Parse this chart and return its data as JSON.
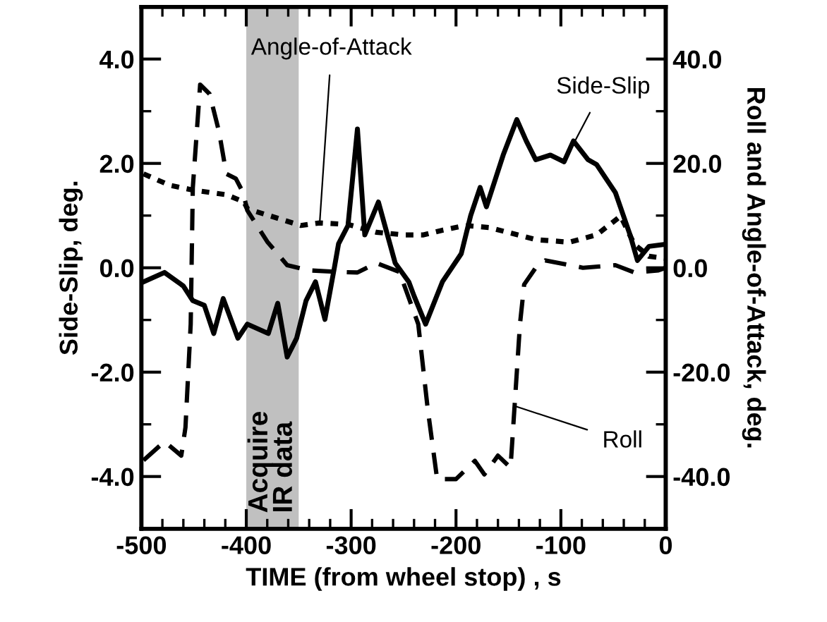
{
  "chart_data": {
    "type": "line",
    "xlabel": "TIME (from wheel stop) , s",
    "ylabel": "Side-Slip, deg.",
    "y2label": "Roll and Angle-of-Attack, deg.",
    "xlim": [
      -500,
      0
    ],
    "xticks": [
      -500,
      -400,
      -300,
      -200,
      -100,
      0
    ],
    "ylim": [
      -5,
      5
    ],
    "yticks": [
      {
        "value": -4,
        "label": "-4.0"
      },
      {
        "value": -2,
        "label": "-2.0"
      },
      {
        "value": 0,
        "label": "0.0"
      },
      {
        "value": 2,
        "label": "2.0"
      },
      {
        "value": 4,
        "label": "4.0"
      }
    ],
    "y2lim": [
      -50,
      50
    ],
    "y2ticks": [
      {
        "value": -40,
        "label": "-40.0"
      },
      {
        "value": -20,
        "label": "-20.0"
      },
      {
        "value": 0,
        "label": "0.0"
      },
      {
        "value": 20,
        "label": "20.0"
      },
      {
        "value": 40,
        "label": "40.0"
      }
    ],
    "grid": false,
    "legend": false,
    "series": [
      {
        "color": "#000000",
        "line_style": "solid",
        "x": [
          -498,
          -478,
          -460,
          -451,
          -440,
          -431,
          -422,
          -408,
          -399,
          -379,
          -370,
          -361,
          -352,
          -343,
          -334,
          -325,
          -316,
          -312,
          -303,
          -294,
          -287,
          -274,
          -258,
          -245,
          -240,
          -229,
          -213,
          -195,
          -186,
          -177,
          -171,
          -155,
          -142,
          -133,
          -124,
          -110,
          -97,
          -88,
          -74,
          -66,
          -48,
          -34,
          -27,
          -16,
          0
        ],
        "values": [
          -0.27,
          -0.09,
          -0.35,
          -0.63,
          -0.72,
          -1.26,
          -0.59,
          -1.35,
          -1.08,
          -1.26,
          -0.68,
          -1.71,
          -1.35,
          -0.63,
          -0.27,
          -0.99,
          0.0,
          0.46,
          0.81,
          2.66,
          0.63,
          1.26,
          0.09,
          -0.27,
          -0.54,
          -1.08,
          -0.27,
          0.27,
          1.0,
          1.54,
          1.17,
          2.16,
          2.84,
          2.43,
          2.07,
          2.16,
          2.03,
          2.43,
          2.07,
          1.98,
          1.44,
          0.63,
          0.14,
          0.41,
          0.45
        ]
      },
      {
        "color": "#000000",
        "line_style": "dotted",
        "axis": "y2",
        "x": [
          -498,
          -473,
          -451,
          -419,
          -402,
          -399,
          -348,
          -330,
          -303,
          -276,
          -249,
          -231,
          -213,
          -191,
          -168,
          -124,
          -92,
          -66,
          -43,
          -30,
          -16,
          0
        ],
        "values": [
          18.0,
          15.8,
          14.9,
          14.0,
          12.6,
          11.3,
          8.1,
          8.6,
          8.3,
          6.8,
          6.3,
          6.3,
          7.2,
          8.1,
          7.7,
          5.4,
          4.9,
          6.3,
          9.9,
          4.5,
          2.2,
          1.8
        ]
      },
      {
        "color": "#000000",
        "line_style": "dashed",
        "axis": "y2",
        "x": [
          -498,
          -478,
          -462,
          -458,
          -453,
          -451,
          -444,
          -435,
          -426,
          -419,
          -410,
          -403,
          -399,
          -380,
          -361,
          -340,
          -312,
          -294,
          -276,
          -254,
          -236,
          -227,
          -218,
          -200,
          -182,
          -173,
          -160,
          -148,
          -144,
          -139,
          -135,
          -124,
          -115,
          -79,
          -48,
          -30,
          -7,
          0
        ],
        "values": [
          -36.9,
          -33.3,
          -36.0,
          -30.6,
          -10.8,
          15.3,
          35.1,
          33.3,
          26.1,
          18.0,
          17.1,
          14.4,
          11.0,
          5.0,
          0.5,
          -0.5,
          -0.8,
          -0.9,
          0.9,
          -0.8,
          -10.8,
          -27.0,
          -40.5,
          -40.5,
          -37.0,
          -39.6,
          -36.0,
          -38.3,
          -26.1,
          -10.8,
          -3.2,
          0.0,
          1.4,
          0.0,
          0.5,
          -0.9,
          -0.5,
          0.0
        ]
      }
    ],
    "bands": [
      {
        "axis": "x",
        "from": -400,
        "to": -350,
        "label": "Acquire\nIR data",
        "color": "#c0c0c0"
      }
    ],
    "annotations": [
      {
        "text": "Angle-of-Attack",
        "x": -330,
        "y": 0.86
      },
      {
        "text": "Side-Slip",
        "x": -97,
        "y": 2.03
      },
      {
        "text": "Roll",
        "x": -144,
        "y": -2.65
      }
    ]
  }
}
